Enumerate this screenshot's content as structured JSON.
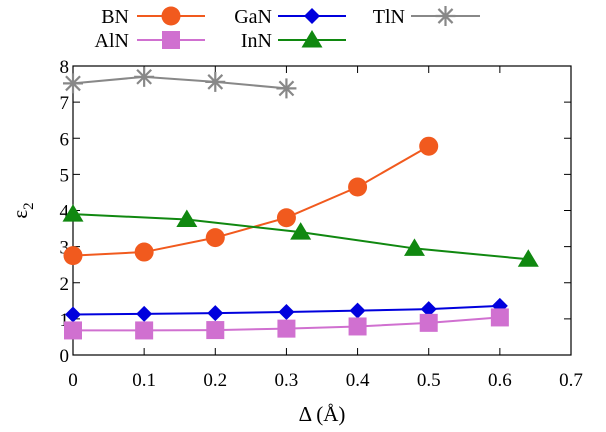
{
  "chart_data": {
    "type": "line",
    "xlabel": "Δ (Å)",
    "ylabel": "ε",
    "ylabel_sub": "2",
    "xlim": [
      0,
      0.7
    ],
    "ylim": [
      0,
      8
    ],
    "xticks": [
      "0",
      "0.1",
      "0.2",
      "0.3",
      "0.4",
      "0.5",
      "0.6",
      "0.7"
    ],
    "yticks": [
      "0",
      "1",
      "2",
      "3",
      "4",
      "5",
      "6",
      "7",
      "8"
    ],
    "grid": false,
    "legend_position": "top",
    "series": [
      {
        "name": "BN",
        "color": "#aaaaaa",
        "marker": "none",
        "x": [],
        "y": []
      },
      {
        "name": "GaN",
        "color": "#f15a1e",
        "marker": "circle",
        "x": [
          0,
          0.1,
          0.2,
          0.3,
          0.4,
          0.5
        ],
        "y": [
          2.75,
          2.85,
          3.25,
          3.8,
          4.65,
          5.78
        ]
      },
      {
        "name": "TlN",
        "color": "#0000dd",
        "marker": "diamond",
        "x": [
          0,
          0.1,
          0.2,
          0.3,
          0.4,
          0.5,
          0.6
        ],
        "y": [
          1.12,
          1.14,
          1.16,
          1.19,
          1.23,
          1.27,
          1.36
        ]
      },
      {
        "name": "",
        "color": "#888888",
        "marker": "asterisk",
        "x": [
          0,
          0.1,
          0.2,
          0.3
        ],
        "y": [
          7.52,
          7.7,
          7.56,
          7.38
        ]
      },
      {
        "name": "AlN",
        "color": "#d070d0",
        "marker": "square",
        "x": [
          0,
          0.1,
          0.2,
          0.3,
          0.4,
          0.5,
          0.6
        ],
        "y": [
          0.68,
          0.68,
          0.69,
          0.73,
          0.79,
          0.89,
          1.04
        ]
      },
      {
        "name": "InN",
        "color": "#108810",
        "marker": "triangle",
        "x": [
          0,
          0.16,
          0.32,
          0.48,
          0.64
        ],
        "y": [
          3.9,
          3.75,
          3.4,
          2.95,
          2.65
        ]
      }
    ]
  }
}
